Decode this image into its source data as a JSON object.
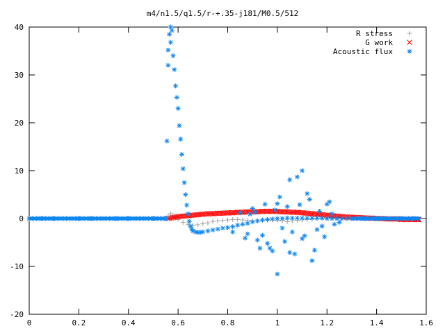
{
  "chart_data": {
    "type": "scatter",
    "title": "m4/n1.5/q1.5/r-+.35-j181/M0.5/512",
    "xlabel": "",
    "ylabel": "",
    "xlim": [
      0,
      1.6
    ],
    "ylim": [
      -20,
      40
    ],
    "x_ticks": [
      "0",
      "0.2",
      "0.4",
      "0.6",
      "0.8",
      "1",
      "1.2",
      "1.4",
      "1.6"
    ],
    "y_ticks": [
      "-20",
      "-10",
      "0",
      "10",
      "20",
      "30",
      "40"
    ],
    "legend_position": "top-right",
    "grid": false,
    "series": [
      {
        "name": "R stress",
        "marker": "+",
        "color": "#a0a0a0",
        "x": [
          0.0,
          0.1,
          0.2,
          0.3,
          0.4,
          0.5,
          0.55,
          0.56,
          0.57,
          0.58,
          0.59,
          0.6,
          0.62,
          0.64,
          0.66,
          0.68,
          0.7,
          0.72,
          0.74,
          0.76,
          0.78,
          0.8,
          0.82,
          0.84,
          0.86,
          0.88,
          0.9,
          0.92,
          0.94,
          0.96,
          0.98,
          1.0,
          1.02,
          1.04,
          1.06,
          1.08,
          1.1,
          1.12,
          1.14,
          1.16,
          1.18,
          1.2,
          1.22,
          1.24,
          1.26,
          1.28,
          1.3,
          1.35,
          1.4,
          1.45,
          1.5,
          1.55,
          1.57
        ],
        "y": [
          0.0,
          0.0,
          0.0,
          0.0,
          0.0,
          0.0,
          0.1,
          0.5,
          1.0,
          0.6,
          0.3,
          -0.2,
          -0.8,
          -1.2,
          -1.4,
          -1.3,
          -1.1,
          -0.9,
          -0.6,
          -0.5,
          -0.4,
          -0.3,
          -0.2,
          -0.2,
          -0.3,
          -0.4,
          -0.5,
          -0.5,
          -0.4,
          -0.3,
          -0.3,
          -0.4,
          -0.5,
          -0.6,
          -0.5,
          -0.4,
          -0.3,
          -0.2,
          -0.1,
          -0.1,
          0.0,
          0.0,
          0.0,
          0.1,
          0.1,
          0.1,
          0.0,
          0.0,
          0.0,
          0.0,
          0.0,
          0.0,
          0.0
        ]
      },
      {
        "name": "G work",
        "marker": "x",
        "color": "#ff0000",
        "x": [
          0.56,
          0.58,
          0.6,
          0.62,
          0.64,
          0.66,
          0.68,
          0.7,
          0.72,
          0.74,
          0.76,
          0.78,
          0.8,
          0.82,
          0.84,
          0.86,
          0.88,
          0.9,
          0.92,
          0.94,
          0.96,
          0.98,
          1.0,
          1.02,
          1.04,
          1.06,
          1.08,
          1.1,
          1.12,
          1.14,
          1.16,
          1.18,
          1.2,
          1.22,
          1.24,
          1.26,
          1.28,
          1.3,
          1.32,
          1.34,
          1.36,
          1.38,
          1.4,
          1.42,
          1.44,
          1.46,
          1.48,
          1.5,
          1.52,
          1.54,
          1.56,
          1.57
        ],
        "y": [
          0.0,
          0.2,
          0.4,
          0.5,
          0.6,
          0.7,
          0.8,
          0.9,
          1.0,
          1.0,
          1.1,
          1.1,
          1.2,
          1.2,
          1.3,
          1.3,
          1.4,
          1.4,
          1.4,
          1.5,
          1.5,
          1.5,
          1.5,
          1.4,
          1.4,
          1.3,
          1.3,
          1.2,
          1.1,
          1.0,
          0.9,
          0.8,
          0.7,
          0.6,
          0.5,
          0.4,
          0.3,
          0.3,
          0.2,
          0.2,
          0.1,
          0.1,
          0.0,
          0.0,
          -0.1,
          -0.1,
          -0.1,
          -0.2,
          -0.2,
          -0.2,
          -0.2,
          -0.2
        ]
      },
      {
        "name": "Acoustic flux",
        "marker": "*",
        "color": "#0f86f0",
        "x": [
          0.0,
          0.05,
          0.1,
          0.15,
          0.2,
          0.25,
          0.3,
          0.35,
          0.4,
          0.45,
          0.5,
          0.55,
          0.56,
          0.56,
          0.565,
          0.57,
          0.57,
          0.575,
          0.58,
          0.585,
          0.59,
          0.595,
          0.6,
          0.605,
          0.61,
          0.615,
          0.62,
          0.625,
          0.63,
          0.635,
          0.64,
          0.645,
          0.65,
          0.655,
          0.66,
          0.67,
          0.68,
          0.69,
          0.7,
          0.72,
          0.74,
          0.76,
          0.78,
          0.8,
          0.82,
          0.84,
          0.86,
          0.88,
          0.9,
          0.92,
          0.94,
          0.96,
          0.98,
          1.0,
          1.02,
          1.04,
          1.06,
          1.08,
          1.1,
          1.12,
          1.14,
          1.16,
          1.18,
          1.2,
          1.22,
          1.24,
          1.26,
          1.28,
          1.3,
          1.35,
          1.4,
          1.45,
          1.5,
          1.55,
          1.57,
          0.555,
          0.82,
          0.85,
          0.88,
          0.9,
          0.92,
          0.95,
          0.97,
          0.99,
          1.0,
          1.01,
          1.03,
          1.05,
          1.07,
          1.09,
          1.1,
          1.11,
          1.13,
          1.15,
          1.17,
          1.19,
          1.21,
          1.23,
          1.25,
          0.93,
          0.96,
          1.04,
          1.06,
          1.12,
          1.14,
          0.87,
          0.91,
          0.98,
          1.02,
          1.08,
          1.16,
          1.18,
          1.22,
          0.89,
          0.94,
          1.0,
          1.05,
          1.1,
          1.2
        ],
        "y": [
          0.0,
          0.0,
          0.0,
          0.0,
          0.0,
          0.0,
          0.0,
          0.0,
          0.0,
          0.0,
          0.0,
          0.0,
          35.2,
          32.0,
          38.5,
          40.0,
          36.8,
          39.3,
          34.0,
          31.1,
          27.7,
          25.3,
          23.0,
          19.4,
          16.6,
          13.4,
          10.4,
          7.5,
          5.0,
          2.8,
          1.0,
          -0.6,
          -1.6,
          -2.2,
          -2.6,
          -2.8,
          -2.9,
          -2.9,
          -2.8,
          -2.6,
          -2.4,
          -2.2,
          -2.0,
          -1.9,
          -1.7,
          -1.4,
          -1.2,
          -1.0,
          -0.7,
          -0.5,
          -0.3,
          -0.2,
          -0.1,
          0.0,
          0.0,
          0.1,
          0.1,
          0.1,
          0.1,
          0.1,
          0.1,
          0.1,
          0.1,
          0.0,
          0.0,
          0.0,
          0.0,
          0.0,
          0.0,
          0.0,
          0.0,
          0.0,
          0.0,
          0.0,
          0.0,
          16.2,
          -2.8,
          1.2,
          -3.2,
          2.1,
          -4.5,
          3.0,
          -6.2,
          1.8,
          -11.6,
          4.5,
          -4.8,
          8.1,
          -7.4,
          2.9,
          10.0,
          -3.6,
          4.0,
          -6.6,
          1.5,
          -3.8,
          3.5,
          -1.2,
          -0.8,
          -6.2,
          -5.2,
          2.5,
          -2.8,
          5.2,
          -8.8,
          -4.1,
          1.3,
          -6.8,
          -2.0,
          8.7,
          -2.3,
          -1.6,
          1.0,
          0.9,
          -3.5,
          3.1,
          -7.1,
          -4.2,
          3.0
        ]
      }
    ]
  }
}
